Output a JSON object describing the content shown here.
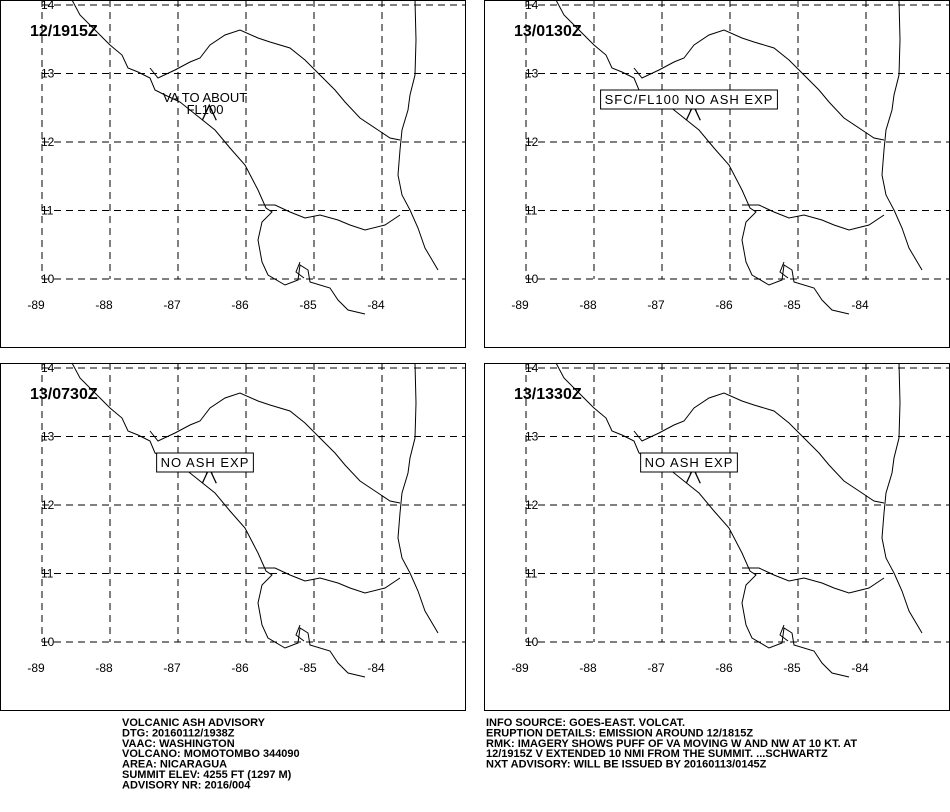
{
  "lon_ticks": [
    -89,
    -88,
    -87,
    -86,
    -85,
    -84
  ],
  "lat_ticks": [
    10,
    11,
    12,
    13,
    14
  ],
  "panels": [
    {
      "time": "12/1915Z",
      "annotation": [
        "VA TO ABOUT",
        "FL100"
      ],
      "boxed": false
    },
    {
      "time": "13/0130Z",
      "annotation": [
        "SFC/FL100 NO ASH EXP"
      ],
      "boxed": true
    },
    {
      "time": "13/0730Z",
      "annotation": [
        "NO ASH EXP"
      ],
      "boxed": true
    },
    {
      "time": "13/1330Z",
      "annotation": [
        "NO ASH EXP"
      ],
      "boxed": true
    }
  ],
  "advisory": [
    "VOLCANIC ASH ADVISORY",
    "DTG: 20160112/1938Z",
    "VAAC: WASHINGTON",
    "VOLCANO: MOMOTOMBO 344090",
    "AREA: NICARAGUA",
    "SUMMIT ELEV: 4255 FT (1297 M)",
    "ADVISORY NR: 2016/004"
  ],
  "details": [
    "INFO SOURCE: GOES-EAST. VOLCAT.",
    "ERUPTION DETAILS: EMISSION AROUND 12/1815Z",
    "RMK: IMAGERY SHOWS PUFF OF VA MOVING W AND NW AT 10 KT. AT",
    "12/1915Z V EXTENDED 10 NMI FROM THE SUMMIT. ...SCHWARTZ",
    "NXT ADVISORY: WILL BE ISSUED BY 20160113/0145Z"
  ]
}
